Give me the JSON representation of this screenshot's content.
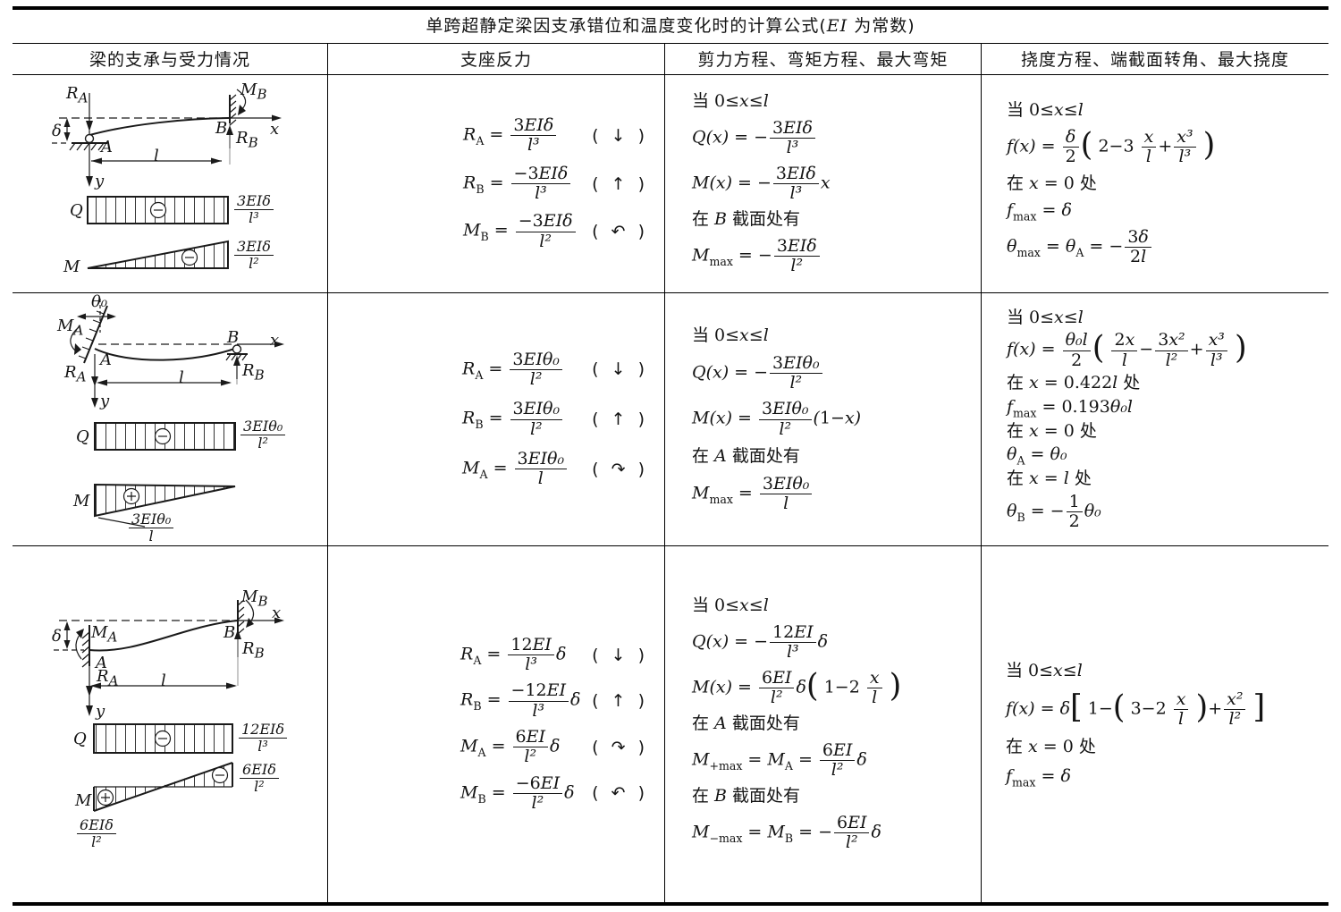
{
  "title": "«单跨超静定梁因支承错位和温度变化时的计算公式(»EI« 为常数)»",
  "headers": [
    "梁的支承与受力情况",
    "支座反力",
    "剪力方程、弯矩方程、最大弯矩",
    "挠度方程、端截面转角、最大挠度"
  ],
  "rows": [
    {
      "diagram": {
        "ra": "R§{A}",
        "mb": "M§{B}",
        "rb": "R§{B}",
        "delta": "δ",
        "a": "A",
        "b": "B",
        "x": "x",
        "y": "y",
        "l": "l",
        "q": "Q",
        "m": "M",
        "q_value": "{3EIδ|l³}",
        "m_value": "{3EIδ|l²}"
      },
      "reactions": [
        {
          "formula": "R§{A} = {3EIδ|l³}",
          "direction": "( ↓ )"
        },
        {
          "formula": "R§{B} = {−3EIδ|l³}",
          "direction": "( ↑ )"
        },
        {
          "formula": "M§{B} = {−3EIδ|l²}",
          "direction": "( ↶ )"
        }
      ],
      "shear_moment": [
        "«当 »0≤x≤l",
        "Q(x) = −{3EIδ|l³}",
        "M(x) = −{3EIδ|l³}x",
        "«在 »B« 截面处有»",
        "M§{max} = −{3EIδ|l²}"
      ],
      "deflection": [
        "«当 »0≤x≤l",
        "f(x) = {δ|2}(( 2−3 {x|l}+{x³|l³} ))",
        "«在 »x = 0« 处»",
        "f§{max} = δ",
        "θ§{max} = θ§{A} = −{3δ|2l}"
      ]
    },
    {
      "diagram": {
        "theta0": "θ₀",
        "ma": "M§{A}",
        "ra": "R§{A}",
        "rb": "R§{B}",
        "a": "A",
        "b": "B",
        "x": "x",
        "y": "y",
        "l": "l",
        "q": "Q",
        "m": "M",
        "q_value": "{3EIθ₀|l²}",
        "m_value": "{3EIθ₀|l}"
      },
      "reactions": [
        {
          "formula": "R§{A} = {3EIθ₀|l²}",
          "direction": "( ↓ )"
        },
        {
          "formula": "R§{B} = {3EIθ₀|l²}",
          "direction": "( ↑ )"
        },
        {
          "formula": "M§{A} = {3EIθ₀|l}",
          "direction": "( ↷ )"
        }
      ],
      "shear_moment": [
        "«当 »0≤x≤l",
        "Q(x) = −{3EIθ₀|l²}",
        "M(x) = {3EIθ₀|l²}(1−x)",
        "«在 »A« 截面处有»",
        "M§{max} = {3EIθ₀|l}"
      ],
      "deflection": [
        "«当 »0≤x≤l",
        "f(x) = {θ₀l|2}(( {2x|l}−{3x²|l²}+{x³|l³} ))",
        "«在 »x = 0.422l« 处»",
        "f§{max} = 0.193θ₀l",
        "«在 »x = 0« 处»",
        "θ§{A} = θ₀",
        "«在 »x = l« 处»",
        "θ§{B} = −{1|2}θ₀"
      ]
    },
    {
      "diagram": {
        "mb": "M§{B}",
        "ma": "M§{A}",
        "ra": "R§{A}",
        "rb": "R§{B}",
        "delta": "δ",
        "a": "A",
        "b": "B",
        "x": "x",
        "y": "y",
        "l": "l",
        "q": "Q",
        "m": "M",
        "q_value": "{12EIδ|l³}",
        "m_value_right": "{6EIδ|l²}",
        "m_value_left": "{6EIδ|l²}"
      },
      "reactions": [
        {
          "formula": "R§{A} = {12EI|l³}δ",
          "direction": "( ↓ )"
        },
        {
          "formula": "R§{B} = {−12EI|l³}δ",
          "direction": "( ↑ )"
        },
        {
          "formula": "M§{A} = {6EI|l²}δ",
          "direction": "( ↷ )"
        },
        {
          "formula": "M§{B} = {−6EI|l²}δ",
          "direction": "( ↶ )"
        }
      ],
      "shear_moment": [
        "«当 »0≤x≤l",
        "Q(x) = −{12EI|l³}δ",
        "M(x) = {6EI|l²}δ(( 1−2 {x|l} ))",
        "«在 »A« 截面处有»",
        "M§{+max} = M§{A} = {6EI|l²}δ",
        "«在 »B« 截面处有»",
        "M§{−max} = M§{B} = −{6EI|l²}δ"
      ],
      "deflection": [
        "«当 »0≤x≤l",
        "f(x) = δ[[ 1−(( 3−2 {x|l} ))+{x²|l²} ]]",
        "«在 »x = 0« 处»",
        "f§{max} = δ"
      ]
    }
  ]
}
